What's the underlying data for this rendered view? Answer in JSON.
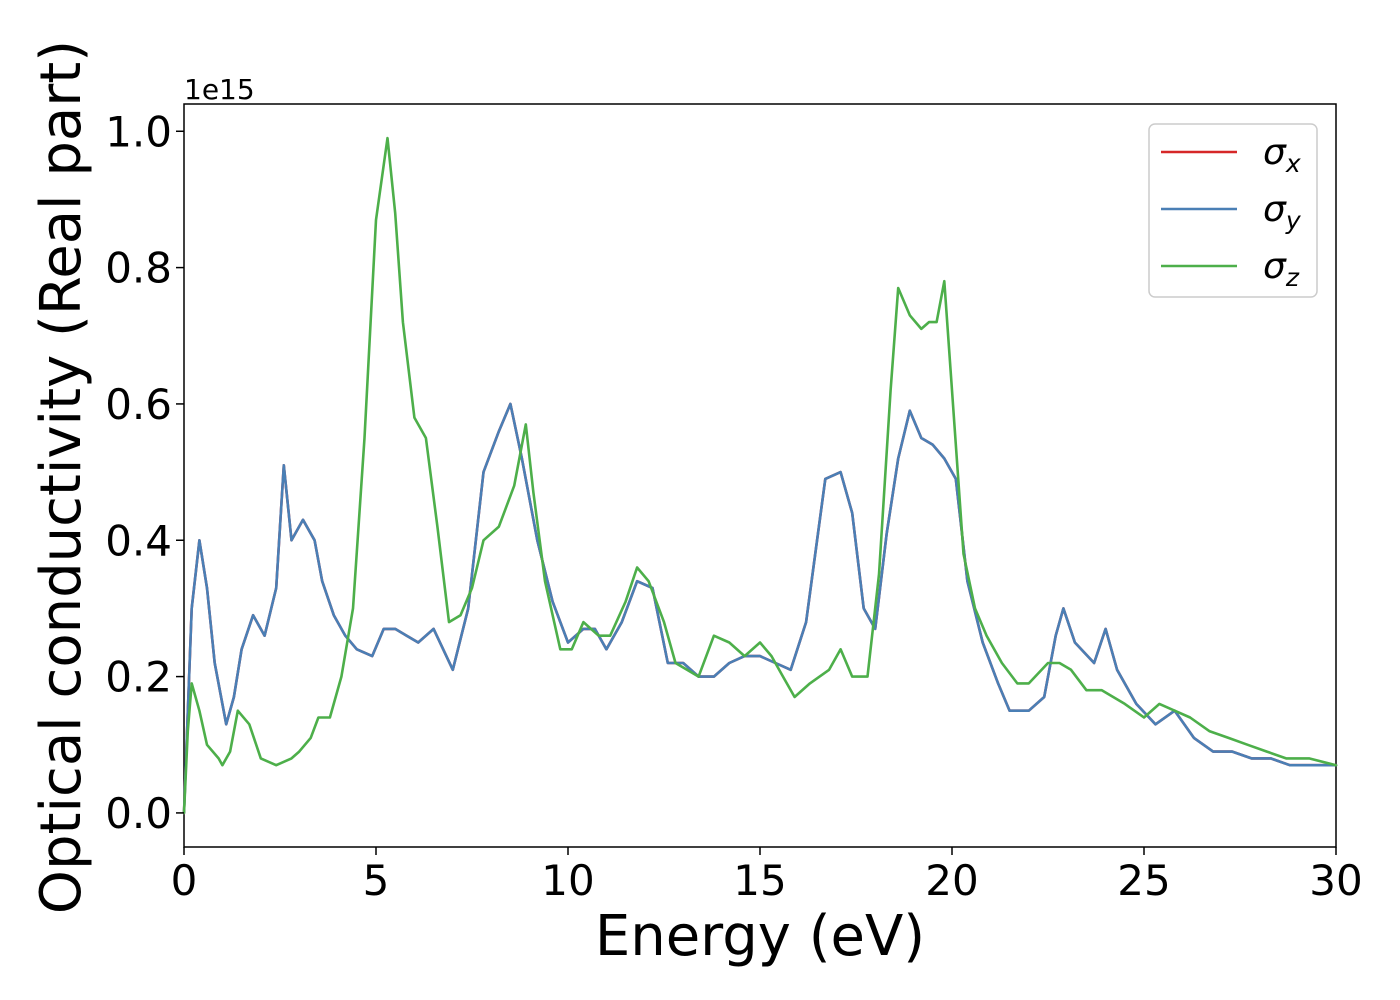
{
  "chart_data": {
    "type": "line",
    "xlabel": "Energy (eV)",
    "ylabel": "Optical conductivity (Real part)",
    "y_offset_label": "1e15",
    "xlim": [
      0,
      30
    ],
    "ylim": [
      -0.05,
      1.04
    ],
    "xticks": [
      0,
      5,
      10,
      15,
      20,
      25,
      30
    ],
    "xtick_labels": [
      "0",
      "5",
      "10",
      "15",
      "20",
      "25",
      "30"
    ],
    "yticks": [
      0.0,
      0.2,
      0.4,
      0.6,
      0.8,
      1.0
    ],
    "ytick_labels": [
      "0.0",
      "0.2",
      "0.4",
      "0.6",
      "0.8",
      "1.0"
    ],
    "grid": false,
    "legend_position": "top-right",
    "series": [
      {
        "name": "σx",
        "symbol": "σ",
        "subscript": "x",
        "color": "#d62728",
        "points": [
          [
            0,
            0.0
          ],
          [
            0.2,
            0.3
          ],
          [
            0.4,
            0.4
          ],
          [
            0.6,
            0.33
          ],
          [
            0.8,
            0.22
          ],
          [
            1.1,
            0.13
          ],
          [
            1.3,
            0.17
          ],
          [
            1.5,
            0.24
          ],
          [
            1.8,
            0.29
          ],
          [
            2.1,
            0.26
          ],
          [
            2.4,
            0.33
          ],
          [
            2.6,
            0.51
          ],
          [
            2.8,
            0.4
          ],
          [
            3.1,
            0.43
          ],
          [
            3.4,
            0.4
          ],
          [
            3.6,
            0.34
          ],
          [
            3.9,
            0.29
          ],
          [
            4.2,
            0.26
          ],
          [
            4.5,
            0.24
          ],
          [
            4.9,
            0.23
          ],
          [
            5.2,
            0.27
          ],
          [
            5.5,
            0.27
          ],
          [
            5.8,
            0.26
          ],
          [
            6.1,
            0.25
          ],
          [
            6.5,
            0.27
          ],
          [
            7.0,
            0.21
          ],
          [
            7.4,
            0.3
          ],
          [
            7.8,
            0.5
          ],
          [
            8.2,
            0.56
          ],
          [
            8.5,
            0.6
          ],
          [
            8.8,
            0.52
          ],
          [
            9.2,
            0.4
          ],
          [
            9.6,
            0.31
          ],
          [
            10.0,
            0.25
          ],
          [
            10.4,
            0.27
          ],
          [
            10.7,
            0.27
          ],
          [
            11.0,
            0.24
          ],
          [
            11.4,
            0.28
          ],
          [
            11.8,
            0.34
          ],
          [
            12.2,
            0.33
          ],
          [
            12.6,
            0.22
          ],
          [
            13.0,
            0.22
          ],
          [
            13.4,
            0.2
          ],
          [
            13.8,
            0.2
          ],
          [
            14.2,
            0.22
          ],
          [
            14.6,
            0.23
          ],
          [
            15.0,
            0.23
          ],
          [
            15.4,
            0.22
          ],
          [
            15.8,
            0.21
          ],
          [
            16.2,
            0.28
          ],
          [
            16.7,
            0.49
          ],
          [
            17.1,
            0.5
          ],
          [
            17.4,
            0.44
          ],
          [
            17.7,
            0.3
          ],
          [
            18.0,
            0.27
          ],
          [
            18.3,
            0.41
          ],
          [
            18.6,
            0.52
          ],
          [
            18.9,
            0.59
          ],
          [
            19.2,
            0.55
          ],
          [
            19.5,
            0.54
          ],
          [
            19.8,
            0.52
          ],
          [
            20.1,
            0.49
          ],
          [
            20.4,
            0.34
          ],
          [
            20.8,
            0.25
          ],
          [
            21.2,
            0.19
          ],
          [
            21.5,
            0.15
          ],
          [
            22.0,
            0.15
          ],
          [
            22.4,
            0.17
          ],
          [
            22.7,
            0.26
          ],
          [
            22.9,
            0.3
          ],
          [
            23.2,
            0.25
          ],
          [
            23.7,
            0.22
          ],
          [
            24.0,
            0.27
          ],
          [
            24.3,
            0.21
          ],
          [
            24.8,
            0.16
          ],
          [
            25.3,
            0.13
          ],
          [
            25.8,
            0.15
          ],
          [
            26.3,
            0.11
          ],
          [
            26.8,
            0.09
          ],
          [
            27.3,
            0.09
          ],
          [
            27.8,
            0.08
          ],
          [
            28.3,
            0.08
          ],
          [
            28.8,
            0.07
          ],
          [
            29.4,
            0.07
          ],
          [
            30,
            0.07
          ]
        ]
      },
      {
        "name": "σy",
        "symbol": "σ",
        "subscript": "y",
        "color": "#4a7fb5",
        "points": [
          [
            0,
            0.0
          ],
          [
            0.2,
            0.3
          ],
          [
            0.4,
            0.4
          ],
          [
            0.6,
            0.33
          ],
          [
            0.8,
            0.22
          ],
          [
            1.1,
            0.13
          ],
          [
            1.3,
            0.17
          ],
          [
            1.5,
            0.24
          ],
          [
            1.8,
            0.29
          ],
          [
            2.1,
            0.26
          ],
          [
            2.4,
            0.33
          ],
          [
            2.6,
            0.51
          ],
          [
            2.8,
            0.4
          ],
          [
            3.1,
            0.43
          ],
          [
            3.4,
            0.4
          ],
          [
            3.6,
            0.34
          ],
          [
            3.9,
            0.29
          ],
          [
            4.2,
            0.26
          ],
          [
            4.5,
            0.24
          ],
          [
            4.9,
            0.23
          ],
          [
            5.2,
            0.27
          ],
          [
            5.5,
            0.27
          ],
          [
            5.8,
            0.26
          ],
          [
            6.1,
            0.25
          ],
          [
            6.5,
            0.27
          ],
          [
            7.0,
            0.21
          ],
          [
            7.4,
            0.3
          ],
          [
            7.8,
            0.5
          ],
          [
            8.2,
            0.56
          ],
          [
            8.5,
            0.6
          ],
          [
            8.8,
            0.52
          ],
          [
            9.2,
            0.4
          ],
          [
            9.6,
            0.31
          ],
          [
            10.0,
            0.25
          ],
          [
            10.4,
            0.27
          ],
          [
            10.7,
            0.27
          ],
          [
            11.0,
            0.24
          ],
          [
            11.4,
            0.28
          ],
          [
            11.8,
            0.34
          ],
          [
            12.2,
            0.33
          ],
          [
            12.6,
            0.22
          ],
          [
            13.0,
            0.22
          ],
          [
            13.4,
            0.2
          ],
          [
            13.8,
            0.2
          ],
          [
            14.2,
            0.22
          ],
          [
            14.6,
            0.23
          ],
          [
            15.0,
            0.23
          ],
          [
            15.4,
            0.22
          ],
          [
            15.8,
            0.21
          ],
          [
            16.2,
            0.28
          ],
          [
            16.7,
            0.49
          ],
          [
            17.1,
            0.5
          ],
          [
            17.4,
            0.44
          ],
          [
            17.7,
            0.3
          ],
          [
            18.0,
            0.27
          ],
          [
            18.3,
            0.41
          ],
          [
            18.6,
            0.52
          ],
          [
            18.9,
            0.59
          ],
          [
            19.2,
            0.55
          ],
          [
            19.5,
            0.54
          ],
          [
            19.8,
            0.52
          ],
          [
            20.1,
            0.49
          ],
          [
            20.4,
            0.34
          ],
          [
            20.8,
            0.25
          ],
          [
            21.2,
            0.19
          ],
          [
            21.5,
            0.15
          ],
          [
            22.0,
            0.15
          ],
          [
            22.4,
            0.17
          ],
          [
            22.7,
            0.26
          ],
          [
            22.9,
            0.3
          ],
          [
            23.2,
            0.25
          ],
          [
            23.7,
            0.22
          ],
          [
            24.0,
            0.27
          ],
          [
            24.3,
            0.21
          ],
          [
            24.8,
            0.16
          ],
          [
            25.3,
            0.13
          ],
          [
            25.8,
            0.15
          ],
          [
            26.3,
            0.11
          ],
          [
            26.8,
            0.09
          ],
          [
            27.3,
            0.09
          ],
          [
            27.8,
            0.08
          ],
          [
            28.3,
            0.08
          ],
          [
            28.8,
            0.07
          ],
          [
            29.4,
            0.07
          ],
          [
            30,
            0.07
          ]
        ]
      },
      {
        "name": "σz",
        "symbol": "σ",
        "subscript": "z",
        "color": "#4daf4a",
        "points": [
          [
            0,
            0.0
          ],
          [
            0.1,
            0.12
          ],
          [
            0.2,
            0.19
          ],
          [
            0.4,
            0.15
          ],
          [
            0.6,
            0.1
          ],
          [
            0.9,
            0.08
          ],
          [
            1.0,
            0.07
          ],
          [
            1.2,
            0.09
          ],
          [
            1.4,
            0.15
          ],
          [
            1.7,
            0.13
          ],
          [
            2.0,
            0.08
          ],
          [
            2.4,
            0.07
          ],
          [
            2.8,
            0.08
          ],
          [
            3.0,
            0.09
          ],
          [
            3.3,
            0.11
          ],
          [
            3.5,
            0.14
          ],
          [
            3.8,
            0.14
          ],
          [
            4.1,
            0.2
          ],
          [
            4.4,
            0.3
          ],
          [
            4.7,
            0.55
          ],
          [
            5.0,
            0.87
          ],
          [
            5.3,
            0.99
          ],
          [
            5.5,
            0.88
          ],
          [
            5.7,
            0.72
          ],
          [
            6.0,
            0.58
          ],
          [
            6.3,
            0.55
          ],
          [
            6.6,
            0.42
          ],
          [
            6.9,
            0.28
          ],
          [
            7.2,
            0.29
          ],
          [
            7.5,
            0.33
          ],
          [
            7.8,
            0.4
          ],
          [
            8.2,
            0.42
          ],
          [
            8.6,
            0.48
          ],
          [
            8.9,
            0.57
          ],
          [
            9.1,
            0.47
          ],
          [
            9.4,
            0.34
          ],
          [
            9.8,
            0.24
          ],
          [
            10.1,
            0.24
          ],
          [
            10.4,
            0.28
          ],
          [
            10.8,
            0.26
          ],
          [
            11.1,
            0.26
          ],
          [
            11.5,
            0.31
          ],
          [
            11.8,
            0.36
          ],
          [
            12.1,
            0.34
          ],
          [
            12.5,
            0.28
          ],
          [
            12.8,
            0.22
          ],
          [
            13.1,
            0.21
          ],
          [
            13.4,
            0.2
          ],
          [
            13.8,
            0.26
          ],
          [
            14.2,
            0.25
          ],
          [
            14.6,
            0.23
          ],
          [
            15.0,
            0.25
          ],
          [
            15.3,
            0.23
          ],
          [
            15.6,
            0.2
          ],
          [
            15.9,
            0.17
          ],
          [
            16.3,
            0.19
          ],
          [
            16.8,
            0.21
          ],
          [
            17.1,
            0.24
          ],
          [
            17.4,
            0.2
          ],
          [
            17.8,
            0.2
          ],
          [
            18.1,
            0.35
          ],
          [
            18.4,
            0.62
          ],
          [
            18.6,
            0.77
          ],
          [
            18.9,
            0.73
          ],
          [
            19.2,
            0.71
          ],
          [
            19.4,
            0.72
          ],
          [
            19.6,
            0.72
          ],
          [
            19.8,
            0.78
          ],
          [
            20.0,
            0.62
          ],
          [
            20.3,
            0.38
          ],
          [
            20.6,
            0.3
          ],
          [
            20.9,
            0.26
          ],
          [
            21.3,
            0.22
          ],
          [
            21.7,
            0.19
          ],
          [
            22.0,
            0.19
          ],
          [
            22.5,
            0.22
          ],
          [
            22.8,
            0.22
          ],
          [
            23.1,
            0.21
          ],
          [
            23.5,
            0.18
          ],
          [
            23.9,
            0.18
          ],
          [
            24.5,
            0.16
          ],
          [
            25.0,
            0.14
          ],
          [
            25.4,
            0.16
          ],
          [
            25.8,
            0.15
          ],
          [
            26.2,
            0.14
          ],
          [
            26.7,
            0.12
          ],
          [
            27.2,
            0.11
          ],
          [
            27.7,
            0.1
          ],
          [
            28.2,
            0.09
          ],
          [
            28.7,
            0.08
          ],
          [
            29.3,
            0.08
          ],
          [
            30,
            0.07
          ]
        ]
      }
    ]
  }
}
